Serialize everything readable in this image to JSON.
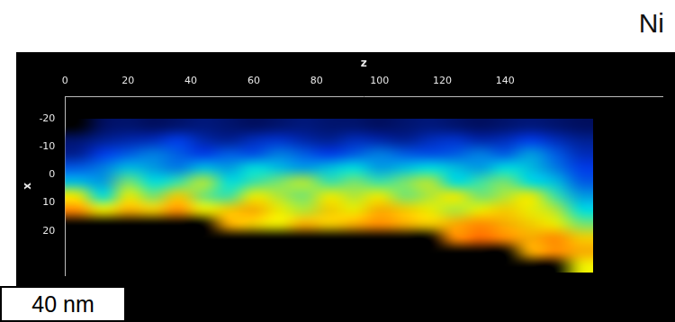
{
  "scale_bar": "40 nm",
  "chart_data": {
    "type": "heatmap",
    "title": "Ni",
    "x_label": "z",
    "y_label": "x",
    "x": [
      4,
      12,
      20,
      28,
      36,
      44,
      52,
      60,
      68,
      76,
      84,
      92,
      100,
      108,
      116,
      124,
      132,
      140,
      148,
      156,
      164
    ],
    "y": [
      -17.5,
      -12.5,
      -7.5,
      -2.5,
      2.5,
      7.5,
      12.5,
      17.5,
      22.5,
      27.5,
      32.5
    ],
    "cells": [
      [
        null,
        0.08,
        0.1,
        0.08,
        0.1,
        0.12,
        0.1,
        0.08,
        0.1,
        0.12,
        0.1,
        0.1,
        0.08,
        0.1,
        0.12,
        0.1,
        0.08,
        0.1,
        0.12,
        0.1,
        0.08
      ],
      [
        0.1,
        0.15,
        0.18,
        0.2,
        0.25,
        0.18,
        0.15,
        0.2,
        0.22,
        0.18,
        0.15,
        0.2,
        0.18,
        0.15,
        0.2,
        0.22,
        0.18,
        0.2,
        0.25,
        0.2,
        0.15
      ],
      [
        0.15,
        0.25,
        0.3,
        0.35,
        0.3,
        0.25,
        0.3,
        0.28,
        0.35,
        0.3,
        0.25,
        0.3,
        0.35,
        0.3,
        0.28,
        0.3,
        0.35,
        0.3,
        0.4,
        0.3,
        0.2
      ],
      [
        0.3,
        0.35,
        0.45,
        0.4,
        0.35,
        0.45,
        0.4,
        0.5,
        0.45,
        0.4,
        0.45,
        0.5,
        0.4,
        0.45,
        0.5,
        0.45,
        0.4,
        0.5,
        0.45,
        0.35,
        0.25
      ],
      [
        0.45,
        0.4,
        0.6,
        0.5,
        0.55,
        0.65,
        0.5,
        0.55,
        0.6,
        0.65,
        0.55,
        0.6,
        0.55,
        0.6,
        0.65,
        0.5,
        0.55,
        0.6,
        0.5,
        0.45,
        0.3
      ],
      [
        0.7,
        0.5,
        0.7,
        0.6,
        0.75,
        0.6,
        0.55,
        0.7,
        0.65,
        0.6,
        0.7,
        0.65,
        0.7,
        0.6,
        0.65,
        0.7,
        0.6,
        0.65,
        0.7,
        0.55,
        0.4
      ],
      [
        0.85,
        0.7,
        0.8,
        0.75,
        0.85,
        0.7,
        0.75,
        0.8,
        0.7,
        0.65,
        0.75,
        0.7,
        0.8,
        0.75,
        0.7,
        0.65,
        0.7,
        0.75,
        0.7,
        0.65,
        0.5
      ],
      [
        null,
        null,
        null,
        null,
        null,
        null,
        0.8,
        0.75,
        0.7,
        0.8,
        0.75,
        0.8,
        0.85,
        0.8,
        0.75,
        0.8,
        0.85,
        0.8,
        0.75,
        0.7,
        0.6
      ],
      [
        null,
        null,
        null,
        null,
        null,
        null,
        null,
        null,
        null,
        null,
        null,
        null,
        null,
        null,
        null,
        0.85,
        0.9,
        0.85,
        0.8,
        0.85,
        0.75
      ],
      [
        null,
        null,
        null,
        null,
        null,
        null,
        null,
        null,
        null,
        null,
        null,
        null,
        null,
        null,
        null,
        null,
        null,
        null,
        0.8,
        0.85,
        0.8
      ],
      [
        null,
        null,
        null,
        null,
        null,
        null,
        null,
        null,
        null,
        null,
        null,
        null,
        null,
        null,
        null,
        null,
        null,
        null,
        null,
        null,
        0.7
      ]
    ],
    "color_range": [
      0,
      1
    ],
    "xlim": [
      0,
      190
    ],
    "ylim": [
      -28,
      36
    ],
    "xticks": [
      0,
      20,
      40,
      60,
      80,
      100,
      120,
      140
    ],
    "yticks": [
      -20,
      -10,
      0,
      10,
      20
    ],
    "grid": false
  }
}
